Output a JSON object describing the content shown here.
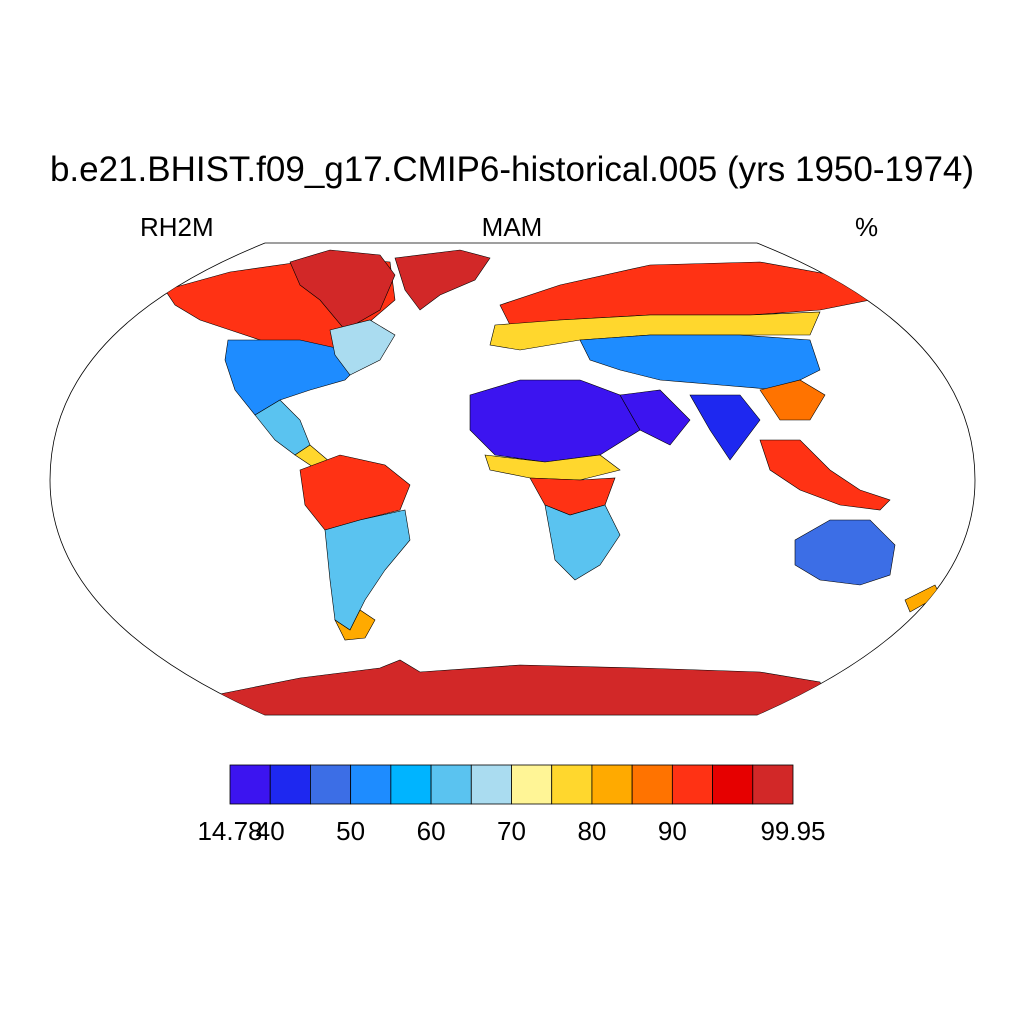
{
  "title": "b.e21.BHIST.f09_g17.CMIP6-historical.005 (yrs 1950-1974)",
  "variable": "RH2M",
  "season": "MAM",
  "units": "%",
  "colorbar": {
    "colors": [
      "#3c14f0",
      "#1e28f0",
      "#3c6ee6",
      "#1e8cff",
      "#00b4ff",
      "#5ac3f0",
      "#aadcf0",
      "#fff596",
      "#ffd72d",
      "#ffaa00",
      "#ff7300",
      "#ff3214",
      "#e60000",
      "#d22828"
    ],
    "tick_labels": [
      "14.78",
      "40",
      "50",
      "60",
      "70",
      "80",
      "90",
      "99.95"
    ]
  },
  "chart_data": {
    "type": "heatmap",
    "title": "b.e21.BHIST.f09_g17.CMIP6-historical.005 (yrs 1950-1974)",
    "field": "RH2M",
    "season": "MAM",
    "units": "%",
    "projection": "Robinson",
    "min": 14.78,
    "max": 99.95,
    "levels": [
      35,
      40,
      45,
      50,
      55,
      60,
      65,
      70,
      75,
      80,
      85,
      90,
      95
    ]
  }
}
